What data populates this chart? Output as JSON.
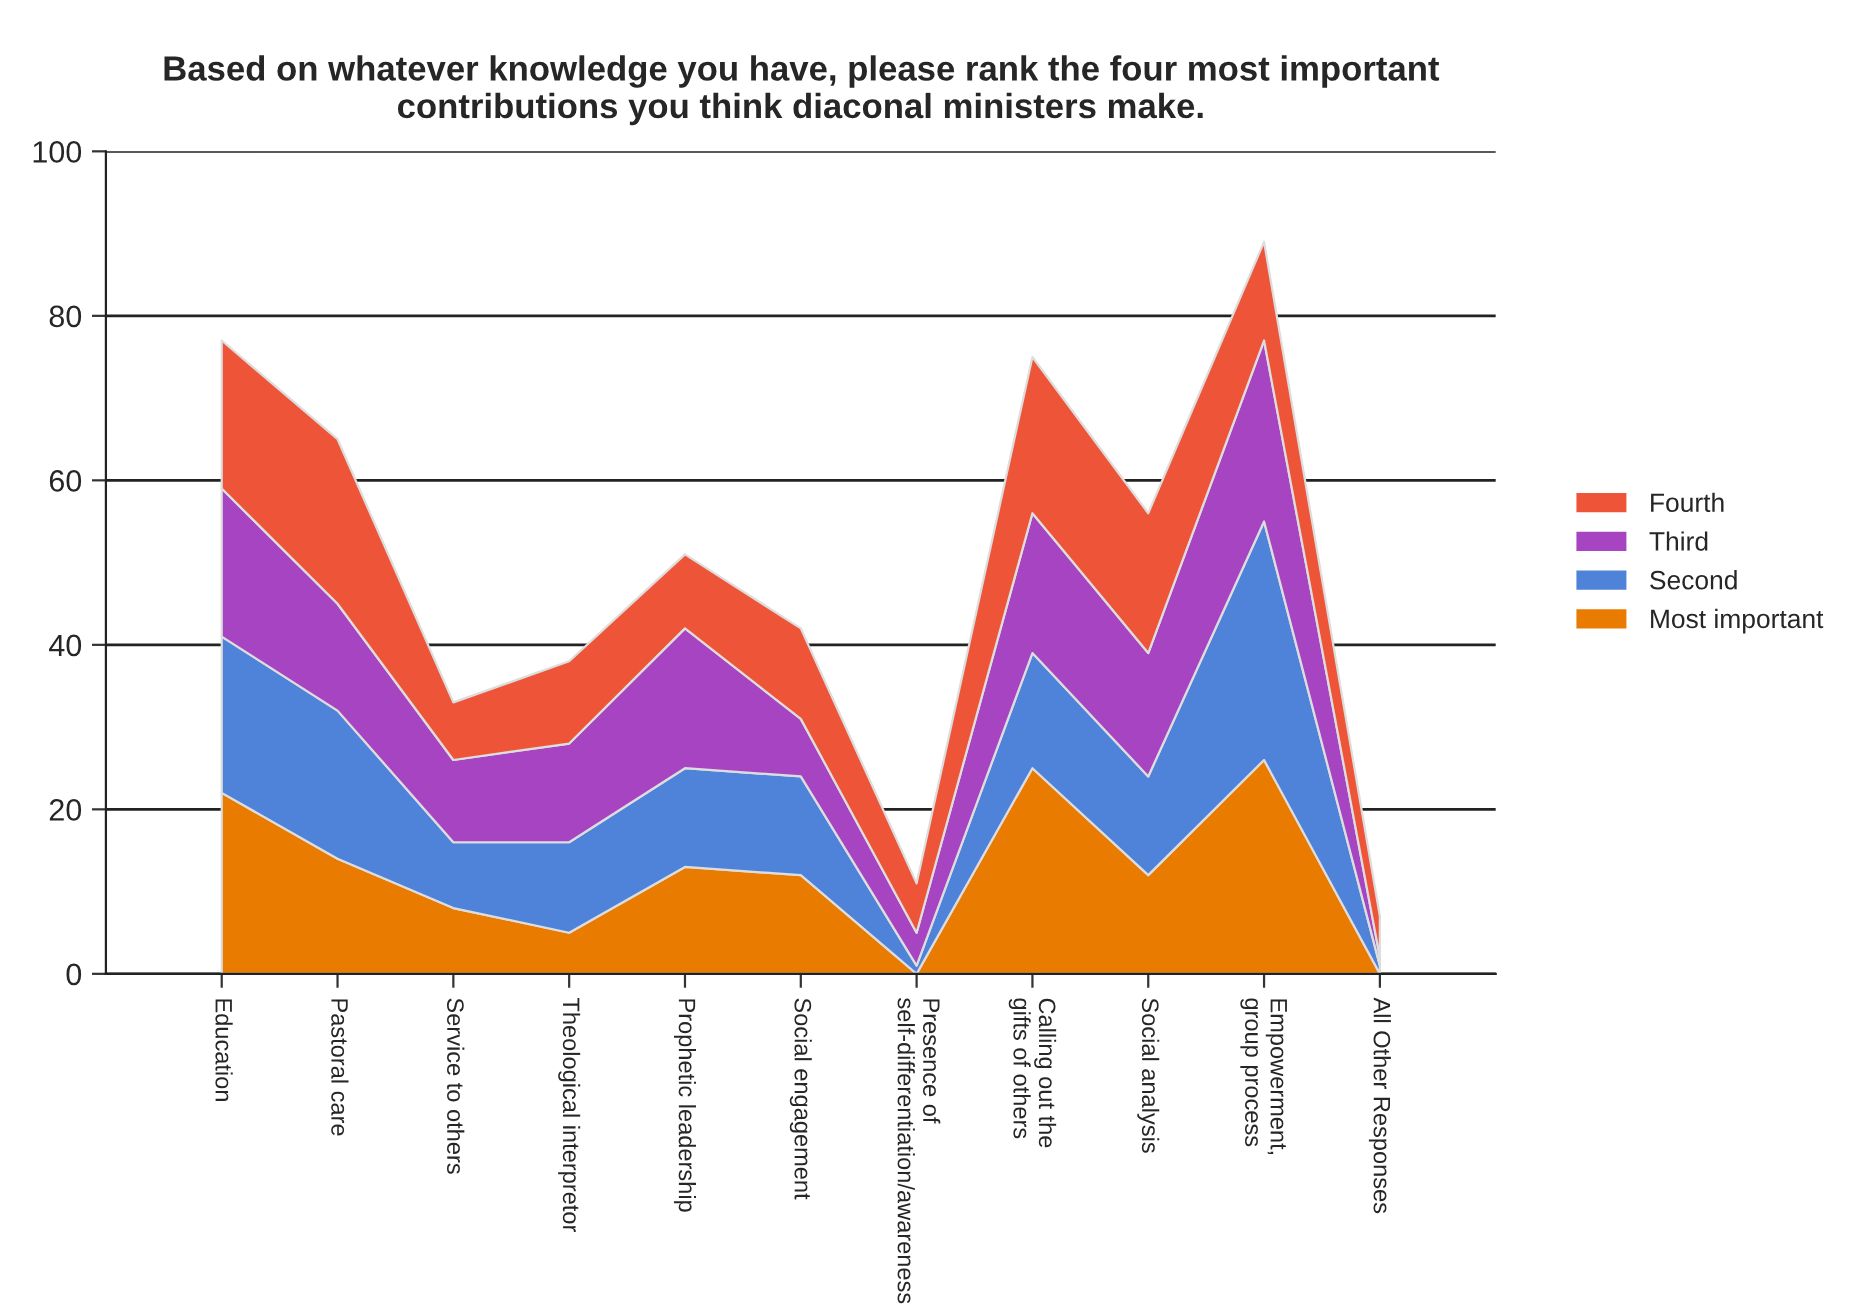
{
  "chart_data": {
    "type": "area",
    "stacked": true,
    "title": "Based on whatever knowledge you have, please rank the four most important\ncontributions you think diaconal ministers make.",
    "categories": [
      "Education",
      "Pastoral care",
      "Service to others",
      "Theological interpretor",
      "Prophetic leadership",
      "Social engagement",
      "Presence of\nself-differentiation/awareness",
      "Calling out the\ngifts of others",
      "Social analysis",
      "Empowerment,\ngroup process",
      "All Other Responses"
    ],
    "series": [
      {
        "name": "Most important",
        "color": "#e87b00",
        "values": [
          22,
          14,
          8,
          5,
          13,
          12,
          0,
          25,
          12,
          26,
          0
        ]
      },
      {
        "name": "Second",
        "color": "#4f83d9",
        "values": [
          19,
          18,
          8,
          11,
          12,
          12,
          1,
          14,
          12,
          29,
          1
        ]
      },
      {
        "name": "Third",
        "color": "#a744c2",
        "values": [
          18,
          13,
          10,
          12,
          17,
          7,
          4,
          17,
          15,
          22,
          1
        ]
      },
      {
        "name": "Fourth",
        "color": "#ee5538",
        "values": [
          18,
          20,
          7,
          10,
          9,
          11,
          6,
          19,
          17,
          12,
          5
        ]
      }
    ],
    "ylim": [
      0,
      100
    ],
    "yticks": [
      0,
      20,
      40,
      60,
      80,
      100
    ],
    "grid": "y",
    "legend": "right"
  }
}
